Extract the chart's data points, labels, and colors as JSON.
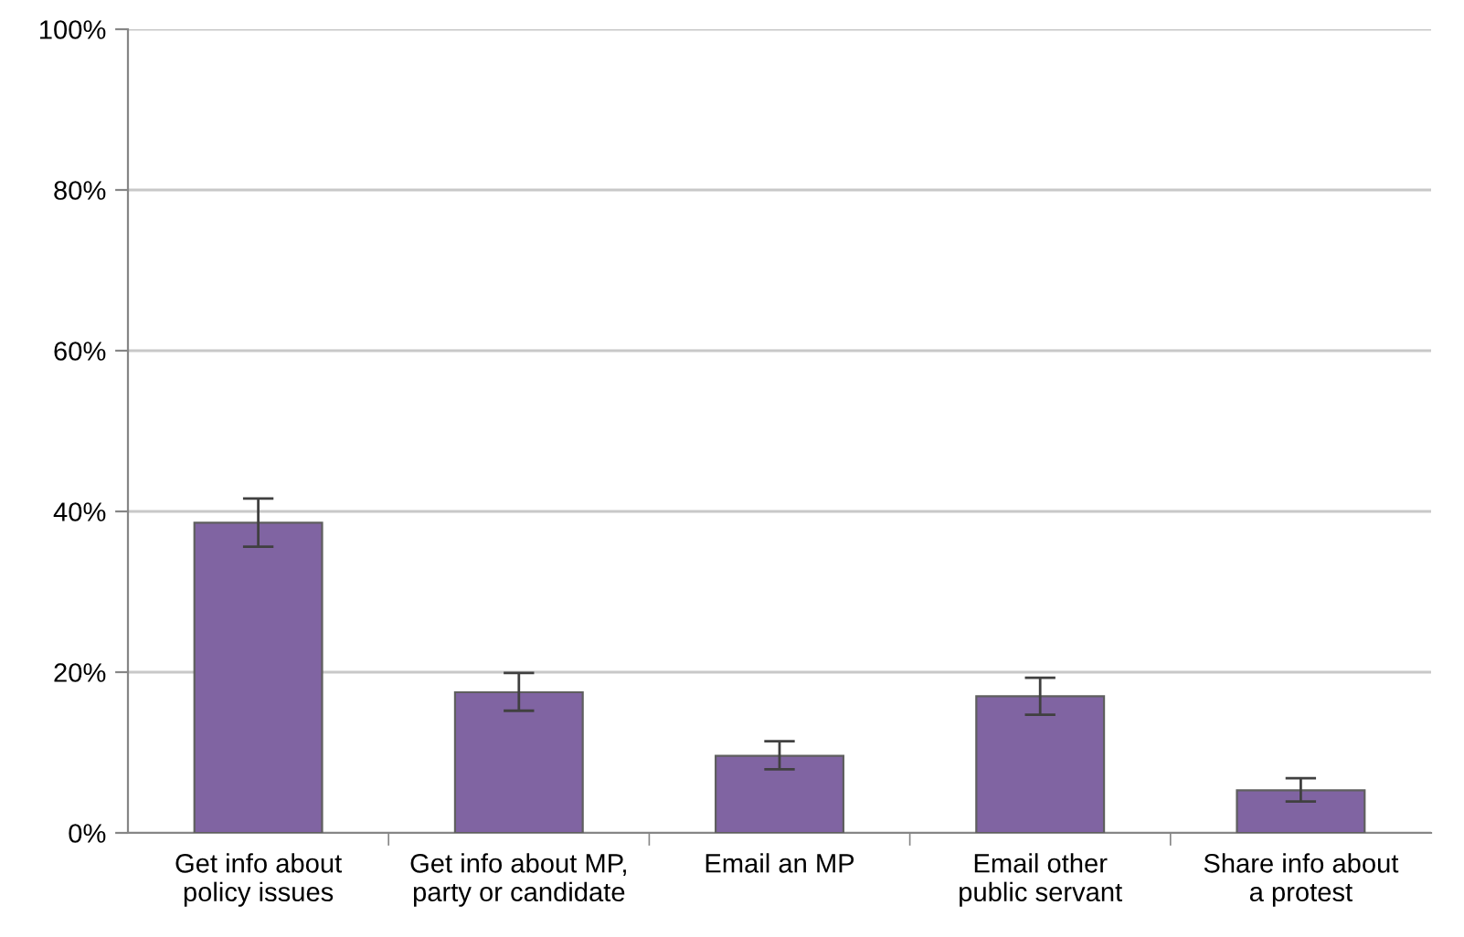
{
  "chart_data": {
    "type": "bar",
    "categories": [
      "Get info about\npolicy issues",
      "Get info about MP,\nparty or candidate",
      "Email an MP",
      "Email other\npublic servant",
      "Share info about\na protest"
    ],
    "values": [
      38.6,
      17.5,
      9.6,
      17.0,
      5.3
    ],
    "errors": [
      [
        35.6,
        41.6
      ],
      [
        15.2,
        19.9
      ],
      [
        7.9,
        11.4
      ],
      [
        14.7,
        19.3
      ],
      [
        3.9,
        6.8
      ]
    ],
    "color": "#8064a2",
    "ylim": [
      0,
      100
    ],
    "yticks": [
      {
        "value": 0,
        "label": "0%"
      },
      {
        "value": 20,
        "label": "20%"
      },
      {
        "value": 40,
        "label": "40%"
      },
      {
        "value": 60,
        "label": "60%"
      },
      {
        "value": 80,
        "label": "80%"
      },
      {
        "value": 100,
        "label": "100%"
      }
    ],
    "grid": "y"
  }
}
